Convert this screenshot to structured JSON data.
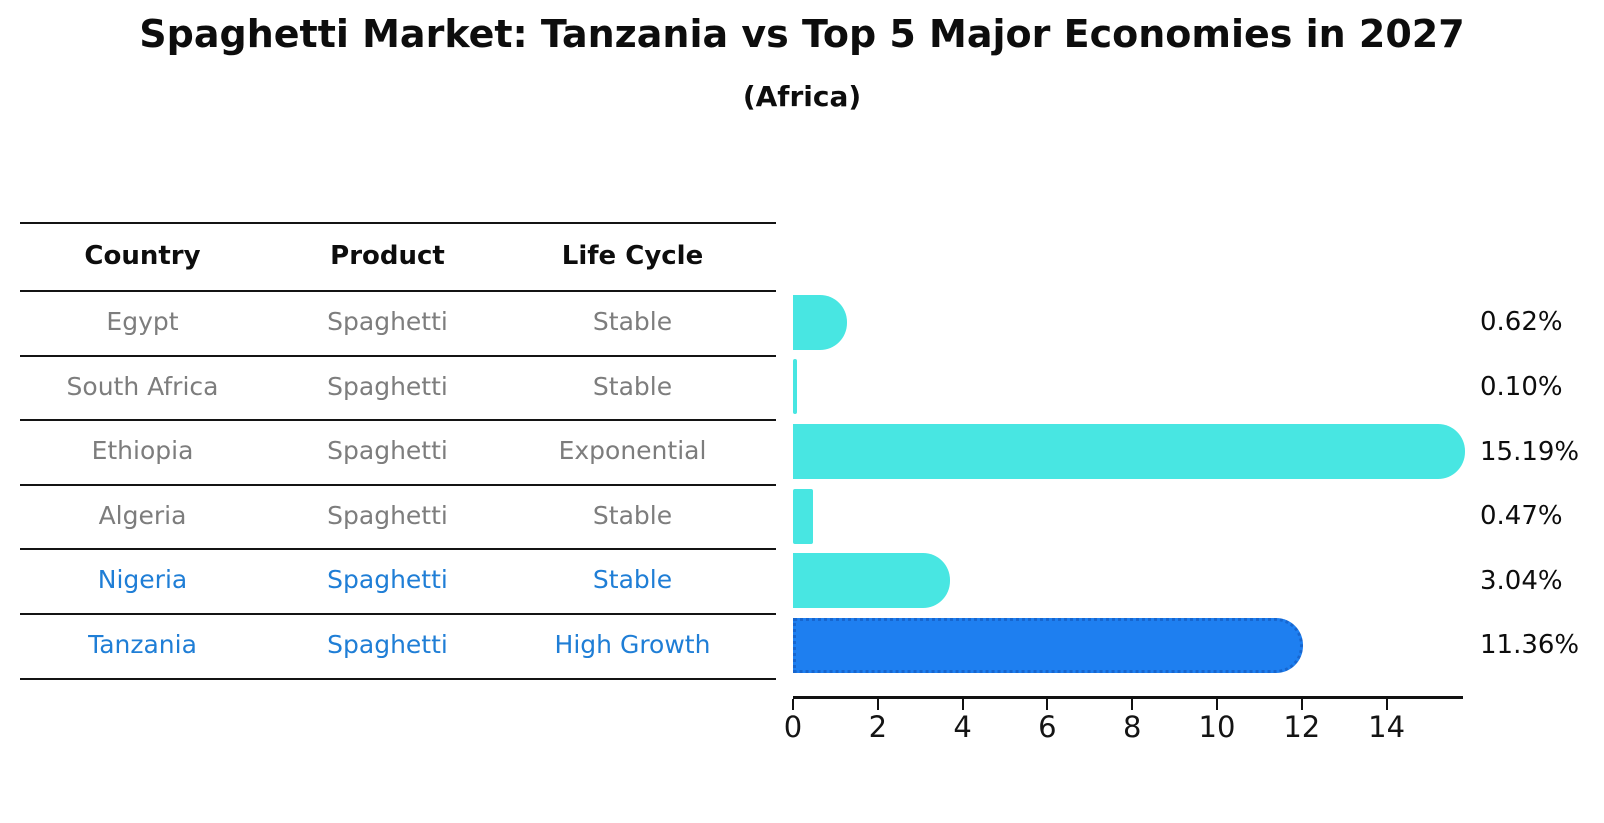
{
  "header": {
    "title": "Spaghetti Market: Tanzania vs Top 5 Major Economies in 2027",
    "subtitle": "(Africa)"
  },
  "table": {
    "headers": [
      "Country",
      "Product",
      "Life Cycle"
    ],
    "rows": [
      {
        "country": "Egypt",
        "product": "Spaghetti",
        "life_cycle": "Stable",
        "highlight": false
      },
      {
        "country": "South Africa",
        "product": "Spaghetti",
        "life_cycle": "Stable",
        "highlight": false
      },
      {
        "country": "Ethiopia",
        "product": "Spaghetti",
        "life_cycle": "Exponential",
        "highlight": false
      },
      {
        "country": "Algeria",
        "product": "Spaghetti",
        "life_cycle": "Stable",
        "highlight": false
      },
      {
        "country": "Nigeria",
        "product": "Spaghetti",
        "life_cycle": "Stable",
        "highlight": true
      }
    ]
  },
  "chart_data": {
    "type": "bar",
    "orientation": "horizontal",
    "title": "Spaghetti Market: Tanzania vs Top 5 Major Economies in 2027",
    "subtitle": "(Africa)",
    "categories": [
      "Egypt",
      "South Africa",
      "Ethiopia",
      "Algeria",
      "Nigeria",
      "Tanzania"
    ],
    "values": [
      0.62,
      0.1,
      15.19,
      0.47,
      3.04,
      11.36
    ],
    "value_labels": [
      "0.62%",
      "0.10%",
      "15.19%",
      "0.47%",
      "3.04%",
      "11.36%"
    ],
    "highlight_index": 5,
    "x_ticks": [
      0,
      2,
      4,
      6,
      8,
      10,
      12,
      14
    ],
    "xlim": [
      0,
      15.95
    ],
    "grid": false,
    "legend": "none",
    "bar_color": "#48E6E2",
    "highlight_bar_color": "#1e7ff0",
    "highlight_border_color": "#1766cf",
    "label_color": "#0d0d0d",
    "table_text_color": "#7d7d7d",
    "highlight_text_color": "#1f7ed6"
  },
  "tanzania_row": {
    "country": "Tanzania",
    "product": "Spaghetti",
    "life_cycle": "High Growth",
    "highlight": true
  }
}
